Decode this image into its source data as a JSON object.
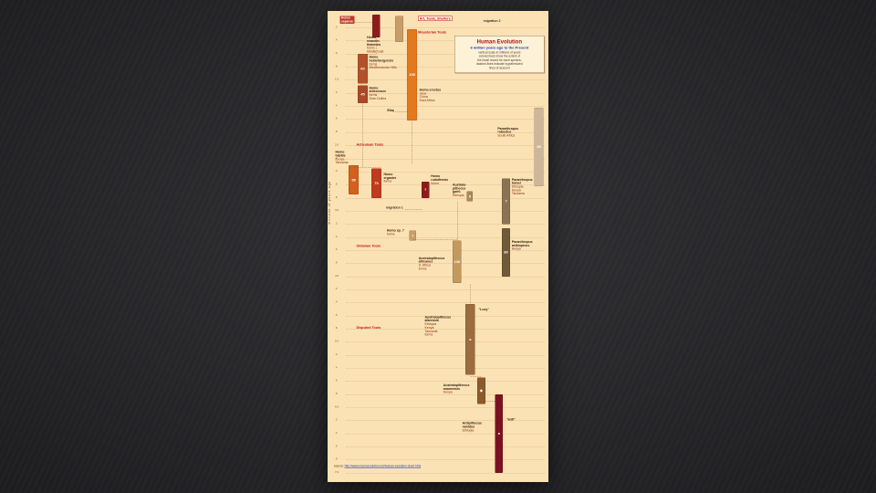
{
  "palette": {
    "slide_bg": "#262629",
    "chart_bg": "#fbe2b4",
    "tool_red": "#c01010",
    "title_red": "#b01010",
    "subtitle_blue": "#1536b0"
  },
  "chart": {
    "axis": {
      "title": "millions of years ago",
      "min": 0,
      "max": 7,
      "step": 0.2
    },
    "title_box": {
      "title": "Human Evolution",
      "subtitle": "6 million years ago to the Present",
      "notes": [
        "vertical scale in millions of years",
        "colored bars show the extent of",
        "the fossil record for each species;",
        "dashed lines indicate hypothesized",
        "lines of descent"
      ]
    },
    "source_prefix": "source: ",
    "source_url": "http://www.macroevolution.net/human-evolution-chart.html"
  },
  "chart_data": {
    "type": "bar",
    "variant": "vertical-timeline",
    "title": "Human Evolution",
    "subtitle": "6 million years ago to the Present",
    "ylabel": "millions of years ago",
    "ylim": [
      0,
      7
    ],
    "grid_step_ma": 0.2,
    "species": [
      {
        "id": "homo-sapiens",
        "name": "Homo sapiens",
        "start_ma": 0.0,
        "end_ma": 0.35,
        "count_label": "",
        "color": "#8e1b1b",
        "bar_x_pct": 20.2,
        "bar_w_pct": 3.6,
        "label": {
          "x_pct": 5.5,
          "t_ma": 0.02,
          "boxed": true,
          "name_lines": [
            "Homo",
            "sapiens"
          ],
          "sub_lines": []
        }
      },
      {
        "id": "homo-neanderthalensis",
        "name": "Homo neanderthalensis",
        "start_ma": 0.02,
        "end_ma": 0.42,
        "count_label": "",
        "color": "#c79d6a",
        "bar_x_pct": 30.6,
        "bar_w_pct": 3.8,
        "label": {
          "x_pct": 17.8,
          "t_ma": 0.33,
          "name_lines": [
            "Homo",
            "neander-",
            "thalensis"
          ],
          "sub_lines": [
            "forms",
            "Middle East"
          ]
        }
      },
      {
        "id": "homo-heidelbergensis",
        "name": "Homo heidelbergensis",
        "start_ma": 0.6,
        "end_ma": 1.05,
        "count_label": "60",
        "color": "#b3502a",
        "bar_x_pct": 13.6,
        "bar_w_pct": 4.6,
        "label": {
          "x_pct": 18.8,
          "t_ma": 0.63,
          "name_lines": [
            "Homo",
            "heidelbergensis"
          ],
          "sub_lines": [
            "forms",
            "Mediterranean Hills"
          ]
        }
      },
      {
        "id": "homo-antecessor",
        "name": "Homo antecessor",
        "start_ma": 1.08,
        "end_ma": 1.35,
        "count_label": "45",
        "color": "#a84a28",
        "bar_x_pct": 13.6,
        "bar_w_pct": 4.6,
        "label": {
          "x_pct": 18.8,
          "t_ma": 1.1,
          "name_lines": [
            "Homo",
            "antecessor"
          ],
          "sub_lines": [
            "forms",
            "Gran Dolina"
          ]
        }
      },
      {
        "id": "homo-erectus",
        "name": "Homo erectus",
        "start_ma": 0.22,
        "end_ma": 1.62,
        "count_label": "100",
        "color": "#e2791f",
        "bar_x_pct": 36.0,
        "bar_w_pct": 4.6,
        "label": {
          "x_pct": 41.6,
          "t_ma": 1.13,
          "name_lines": [
            "Homo erectus"
          ],
          "sub_lines": [
            "Java",
            "China",
            "East Africa"
          ]
        }
      },
      {
        "id": "homo-habilis",
        "name": "Homo habilis",
        "start_ma": 2.3,
        "end_ma": 2.75,
        "count_label": "95",
        "color": "#d2601e",
        "bar_x_pct": 9.6,
        "bar_w_pct": 4.4,
        "label": {
          "x_pct": 3.5,
          "t_ma": 2.08,
          "name_lines": [
            "Homo",
            "habilis"
          ],
          "sub_lines": [
            "Kenya",
            "Tanzania"
          ]
        }
      },
      {
        "id": "homo-ergaster",
        "name": "Homo ergaster",
        "start_ma": 2.35,
        "end_ma": 2.8,
        "count_label": "70",
        "color": "#c03a20",
        "bar_x_pct": 19.8,
        "bar_w_pct": 4.6,
        "label": {
          "x_pct": 25.4,
          "t_ma": 2.42,
          "name_lines": [
            "Homo",
            "ergaster"
          ],
          "sub_lines": [
            "forms"
          ]
        }
      },
      {
        "id": "homo-rudolfensis",
        "name": "Homo rudolfensis",
        "start_ma": 2.55,
        "end_ma": 2.8,
        "count_label": "?",
        "color": "#8e1b1b",
        "bar_x_pct": 42.6,
        "bar_w_pct": 3.4,
        "label": {
          "x_pct": 46.8,
          "t_ma": 2.45,
          "name_lines": [
            "Homo",
            "rudolfensis"
          ],
          "sub_lines": [
            "forms"
          ]
        }
      },
      {
        "id": "homo-sp",
        "name": "Homo sp. ?",
        "start_ma": 3.3,
        "end_ma": 3.45,
        "count_label": "?",
        "color": "#c79d6a",
        "bar_x_pct": 37.0,
        "bar_w_pct": 3.0,
        "label": {
          "x_pct": 26.8,
          "t_ma": 3.28,
          "name_lines": [
            "Homo sp. ?"
          ],
          "sub_lines": [
            "forms"
          ]
        }
      },
      {
        "id": "australopithecus-garhi",
        "name": "Australopithecus garhi",
        "start_ma": 2.7,
        "end_ma": 2.85,
        "count_label": "5",
        "color": "#a9895f",
        "bar_x_pct": 63.0,
        "bar_w_pct": 2.8,
        "label": {
          "x_pct": 56.6,
          "t_ma": 2.58,
          "name_lines": [
            "Australo-",
            "pithecus",
            "garhi"
          ],
          "sub_lines": [
            "Ethiopia"
          ]
        }
      },
      {
        "id": "australopithecus-africanus",
        "name": "Australopithecus africanus",
        "start_ma": 3.45,
        "end_ma": 4.1,
        "count_label": "100",
        "color": "#c2995e",
        "bar_x_pct": 56.6,
        "bar_w_pct": 4.0,
        "label": {
          "x_pct": 41.2,
          "t_ma": 3.7,
          "name_lines": [
            "Australopithecus",
            "africanus"
          ],
          "sub_lines": [
            "S. Africa",
            "forms"
          ]
        }
      },
      {
        "id": "paranthropus-robustus",
        "name": "Paranthropus robustus",
        "start_ma": 1.42,
        "end_ma": 2.62,
        "count_label": "80",
        "color": "#cdb79b",
        "bar_x_pct": 93.6,
        "bar_w_pct": 4.2,
        "label": {
          "x_pct": 77.0,
          "t_ma": 1.72,
          "name_lines": [
            "Paranthropus",
            "robustus"
          ],
          "sub_lines": [
            "South Africa"
          ]
        }
      },
      {
        "id": "paranthropus-boisei",
        "name": "Paranthropus boisei",
        "start_ma": 2.5,
        "end_ma": 3.2,
        "count_label": "?",
        "color": "#8a7355",
        "bar_x_pct": 79.0,
        "bar_w_pct": 3.6,
        "label": {
          "x_pct": 83.4,
          "t_ma": 2.5,
          "name_lines": [
            "Paranthropus",
            "boisei"
          ],
          "sub_lines": [
            "Ethiopia",
            "Kenya",
            "Tanzania"
          ]
        }
      },
      {
        "id": "paranthropus-aethiopicus",
        "name": "Paranthropus aethiopicus",
        "start_ma": 3.26,
        "end_ma": 4.0,
        "count_label": "80",
        "color": "#6f5a3a",
        "bar_x_pct": 79.0,
        "bar_w_pct": 3.6,
        "label": {
          "x_pct": 83.4,
          "t_ma": 3.45,
          "name_lines": [
            "Paranthropus",
            "aethiopicus"
          ],
          "sub_lines": [
            "Kenya"
          ]
        }
      },
      {
        "id": "australopithecus-afarensis",
        "name": "Australopithecus afarensis",
        "start_ma": 4.42,
        "end_ma": 5.5,
        "count_label": "a",
        "color": "#9c6b3f",
        "bar_x_pct": 62.4,
        "bar_w_pct": 4.4,
        "label": {
          "x_pct": 44.0,
          "t_ma": 4.6,
          "name_lines": [
            "Australopithecus",
            "afarensis"
          ],
          "sub_lines": [
            "Ethiopia",
            "Kenya",
            "Tanzania",
            "forms"
          ]
        }
      },
      {
        "id": "australopithecus-anamensis",
        "name": "Australopithecus anamensis",
        "start_ma": 5.54,
        "end_ma": 5.95,
        "count_label": "◆",
        "color": "#8b5a2b",
        "bar_x_pct": 67.8,
        "bar_w_pct": 3.6,
        "label": {
          "x_pct": 52.4,
          "t_ma": 5.64,
          "name_lines": [
            "Australopithecus",
            "anamensis"
          ],
          "sub_lines": [
            "Kenya"
          ]
        }
      },
      {
        "id": "ardipithecus-ramidus",
        "name": "Ardipithecus ramidus",
        "start_ma": 5.8,
        "end_ma": 7.0,
        "count_label": "a",
        "color": "#7b1120",
        "bar_x_pct": 75.8,
        "bar_w_pct": 3.6,
        "label": {
          "x_pct": 61.0,
          "t_ma": 6.22,
          "name_lines": [
            "Ardipithecus",
            "ramidus"
          ],
          "sub_lines": [
            "Ethiopia"
          ]
        }
      }
    ],
    "events": [
      {
        "id": "art-tools-shelters",
        "label": "Art, Tools, Shelters",
        "t_ma": 0.02,
        "x_pct": 41.0,
        "style": "boxed"
      },
      {
        "id": "mousterian-tools",
        "label": "Mousterian Tools",
        "t_ma": 0.24,
        "x_pct": 41.0,
        "style": "tool"
      },
      {
        "id": "migration-2",
        "label": "migration 2",
        "t_ma": 0.08,
        "x_pct": 70.5,
        "style": "plain"
      },
      {
        "id": "acheulean-tools",
        "label": "Acheulean Tools",
        "t_ma": 1.95,
        "x_pct": 13.0,
        "style": "tool"
      },
      {
        "id": "migration-1",
        "label": "migration 1",
        "t_ma": 2.93,
        "x_pct": 26.4,
        "style": "plain"
      },
      {
        "id": "oldowan-tools",
        "label": "Oldowan Tools",
        "t_ma": 3.5,
        "x_pct": 13.0,
        "style": "tool"
      },
      {
        "id": "disputed-tools",
        "label": "Disputed Tools",
        "t_ma": 4.75,
        "x_pct": 13.0,
        "style": "tool"
      }
    ],
    "annotations": [
      {
        "id": "lucy",
        "text": "\"Lucy\"",
        "x_pct": 68.4,
        "t_ma": 4.48
      },
      {
        "id": "ardi",
        "text": "\"ardi\"",
        "x_pct": 81.0,
        "t_ma": 6.16
      },
      {
        "id": "elba",
        "text": "Elba",
        "x_pct": 27.0,
        "t_ma": 1.44
      }
    ],
    "connectors": {
      "vertical": [
        {
          "x_pct": 21.9,
          "t0": 0.36,
          "t1": 0.6
        },
        {
          "x_pct": 15.8,
          "t0": 1.36,
          "t1": 2.33
        },
        {
          "x_pct": 38.2,
          "t0": 1.63,
          "t1": 2.28
        },
        {
          "x_pct": 58.6,
          "t0": 2.86,
          "t1": 3.43
        },
        {
          "x_pct": 64.6,
          "t0": 4.12,
          "t1": 4.4
        }
      ],
      "horizontal": [
        {
          "t_ma": 0.12,
          "x0_pct": 12.0,
          "x1_pct": 20.2
        },
        {
          "t_ma": 0.6,
          "x0_pct": 15.8,
          "x1_pct": 21.9
        },
        {
          "t_ma": 1.48,
          "x0_pct": 29.5,
          "x1_pct": 36.0
        },
        {
          "t_ma": 2.33,
          "x0_pct": 11.8,
          "x1_pct": 24.2
        },
        {
          "t_ma": 2.97,
          "x0_pct": 35.0,
          "x1_pct": 42.6
        },
        {
          "t_ma": 3.43,
          "x0_pct": 38.6,
          "x1_pct": 58.6
        },
        {
          "t_ma": 5.52,
          "x0_pct": 64.6,
          "x1_pct": 69.4
        },
        {
          "t_ma": 5.9,
          "x0_pct": 71.4,
          "x1_pct": 75.8
        }
      ]
    }
  }
}
